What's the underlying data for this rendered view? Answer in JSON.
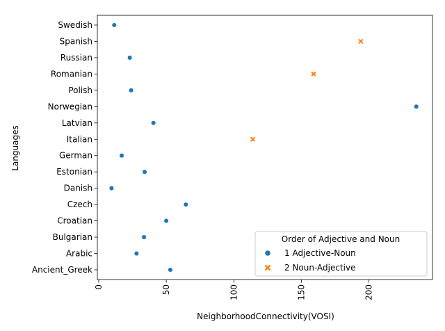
{
  "chart_data": {
    "type": "scatter",
    "xlabel": "NeighborhoodConnectivity(VOSI)",
    "ylabel": "Languages",
    "xlim": [
      -1,
      247
    ],
    "xticks": [
      0,
      50,
      100,
      150,
      200
    ],
    "xtick_labels": [
      "0",
      "50",
      "100",
      "150",
      "200"
    ],
    "xtick_rotation": 90,
    "categories": [
      "Swedish",
      "Spanish",
      "Russian",
      "Romanian",
      "Polish",
      "Norwegian",
      "Latvian",
      "Italian",
      "German",
      "Estonian",
      "Danish",
      "Czech",
      "Croatian",
      "Bulgarian",
      "Arabic",
      "Ancient_Greek"
    ],
    "grid": false,
    "legend": {
      "title": "Order of Adjective and Noun",
      "placement": "lower-right",
      "entries": [
        "1 Adjective-Noun",
        "2 Noun-Adjective"
      ]
    },
    "series": [
      {
        "name": "1 Adjective-Noun",
        "marker": "circle",
        "color": "#1f77b4",
        "points": [
          {
            "y": "Swedish",
            "x": 11.5
          },
          {
            "y": "Russian",
            "x": 23.0
          },
          {
            "y": "Polish",
            "x": 24.0
          },
          {
            "y": "Norwegian",
            "x": 235.0
          },
          {
            "y": "Latvian",
            "x": 40.5
          },
          {
            "y": "German",
            "x": 17.0
          },
          {
            "y": "Estonian",
            "x": 34.0
          },
          {
            "y": "Danish",
            "x": 9.5
          },
          {
            "y": "Czech",
            "x": 64.5
          },
          {
            "y": "Croatian",
            "x": 50.0
          },
          {
            "y": "Bulgarian",
            "x": 33.5
          },
          {
            "y": "Arabic",
            "x": 28.0
          },
          {
            "y": "Ancient_Greek",
            "x": 53.0
          }
        ]
      },
      {
        "name": "2 Noun-Adjective",
        "marker": "x",
        "color": "#ff7f0e",
        "points": [
          {
            "y": "Spanish",
            "x": 194.0
          },
          {
            "y": "Romanian",
            "x": 159.0
          },
          {
            "y": "Italian",
            "x": 114.0
          }
        ]
      }
    ]
  }
}
